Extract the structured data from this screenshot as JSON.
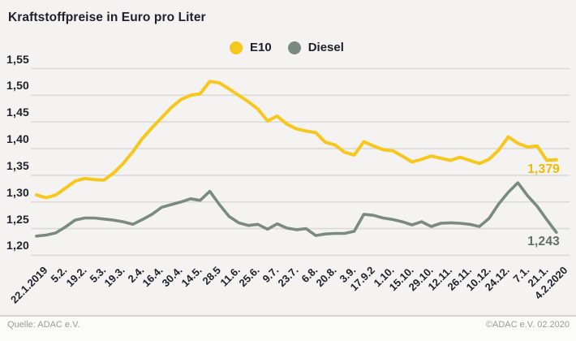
{
  "title": "Kraftstoffpreise in Euro pro Liter",
  "legend": [
    {
      "label": "E10",
      "color": "#f6c71c"
    },
    {
      "label": "Diesel",
      "color": "#7a8a83"
    }
  ],
  "footer": {
    "source": "Quelle: ADAC e.V.",
    "copyright": "©ADAC e.V.  02.2020"
  },
  "colors": {
    "e10_line": "#f6c71c",
    "e10_value_label": "#f0bb00",
    "diesel_line": "#7a8a83",
    "diesel_value_label": "#5f6f68",
    "gridline": "#dbdad8",
    "text": "#1e212b",
    "footer_text": "#9a9a98"
  },
  "chart_data": {
    "type": "line",
    "title": "Kraftstoffpreise in Euro pro Liter",
    "ylabel": "Euro pro Liter",
    "xlabel": "",
    "ylim": [
      1.2,
      1.55
    ],
    "grid": "horizontal",
    "legend_position": "top-center",
    "yticks": [
      1.55,
      1.5,
      1.45,
      1.4,
      1.35,
      1.3,
      1.25,
      1.2
    ],
    "ytick_labels": [
      "1,55",
      "1,50",
      "1,45",
      "1,40",
      "1,35",
      "1,30",
      "1,25",
      "1,20"
    ],
    "xtick_labels": [
      "22.1.2019",
      "5.2.",
      "19.2.",
      "5.3.",
      "19.3.",
      "2.4.",
      "16.4.",
      "30.4.",
      "14.5.",
      "28.5",
      "11.6.",
      "25.6.",
      "9.7.",
      "23.7.",
      "6.8.",
      "20.8.",
      "3.9.",
      "17.9.2",
      "1.10.",
      "15.10.",
      "29.10.",
      "12.11.",
      "26.11.",
      "10.12.",
      "24.12.",
      "7.1.",
      "21.1.",
      "4.2.2020"
    ],
    "x": [
      "22.1.2019",
      "29.1.",
      "5.2.",
      "12.2.",
      "19.2.",
      "26.2.",
      "5.3.",
      "12.3.",
      "19.3.",
      "26.3.",
      "2.4.",
      "9.4.",
      "16.4.",
      "23.4.",
      "30.4.",
      "7.5.",
      "14.5.",
      "21.5.",
      "28.5.",
      "4.6.",
      "11.6.",
      "18.6.",
      "25.6.",
      "2.7.",
      "9.7.",
      "16.7.",
      "23.7.",
      "30.7.",
      "6.8.",
      "13.8.",
      "20.8.",
      "27.8.",
      "3.9.",
      "10.9.",
      "17.9.",
      "24.9.",
      "1.10.",
      "8.10.",
      "15.10.",
      "22.10.",
      "29.10.",
      "5.11.",
      "12.11.",
      "19.11.",
      "26.11.",
      "3.12.",
      "10.12.",
      "17.12.",
      "24.12.",
      "31.12.",
      "7.1.2020",
      "14.1.",
      "21.1.",
      "28.1.",
      "4.2.2020"
    ],
    "series": [
      {
        "name": "E10",
        "color": "#f6c71c",
        "end_label": "1,379",
        "end_value": 1.379,
        "values": [
          1.313,
          1.308,
          1.313,
          1.326,
          1.339,
          1.344,
          1.342,
          1.341,
          1.354,
          1.372,
          1.394,
          1.419,
          1.439,
          1.458,
          1.477,
          1.492,
          1.5,
          1.503,
          1.526,
          1.523,
          1.512,
          1.5,
          1.488,
          1.474,
          1.452,
          1.461,
          1.446,
          1.437,
          1.433,
          1.43,
          1.412,
          1.407,
          1.393,
          1.388,
          1.413,
          1.405,
          1.398,
          1.396,
          1.386,
          1.375,
          1.38,
          1.386,
          1.382,
          1.378,
          1.384,
          1.378,
          1.372,
          1.38,
          1.397,
          1.422,
          1.41,
          1.403,
          1.405,
          1.378,
          1.379
        ]
      },
      {
        "name": "Diesel",
        "color": "#7a8a83",
        "end_label": "1,243",
        "end_value": 1.243,
        "values": [
          1.236,
          1.238,
          1.242,
          1.253,
          1.266,
          1.27,
          1.27,
          1.268,
          1.266,
          1.263,
          1.258,
          1.267,
          1.277,
          1.29,
          1.295,
          1.3,
          1.306,
          1.303,
          1.32,
          1.295,
          1.273,
          1.261,
          1.256,
          1.258,
          1.249,
          1.259,
          1.251,
          1.248,
          1.25,
          1.237,
          1.24,
          1.241,
          1.241,
          1.245,
          1.277,
          1.275,
          1.27,
          1.267,
          1.263,
          1.257,
          1.263,
          1.254,
          1.26,
          1.261,
          1.26,
          1.258,
          1.254,
          1.269,
          1.296,
          1.318,
          1.336,
          1.312,
          1.292,
          1.267,
          1.243
        ]
      }
    ]
  }
}
